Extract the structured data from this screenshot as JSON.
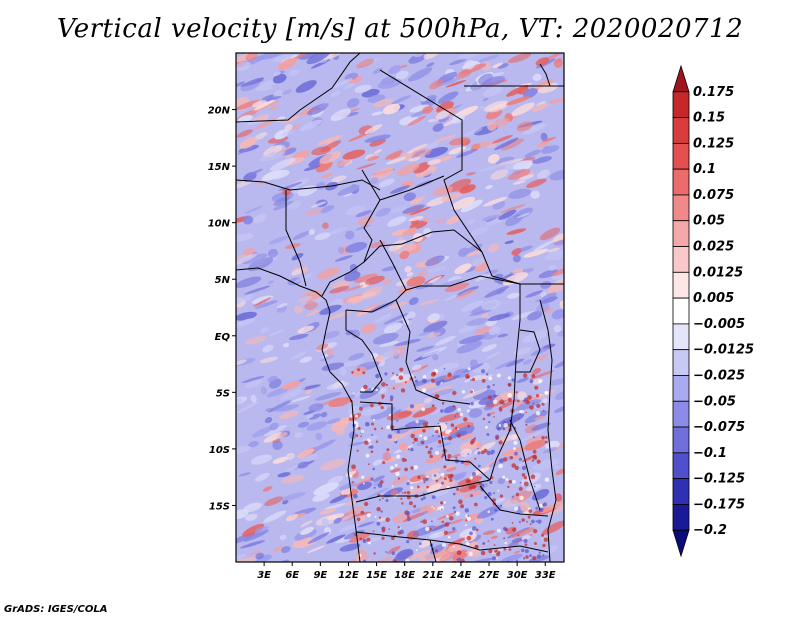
{
  "title": "Vertical velocity [m/s] at 500hPa, VT: 2020020712",
  "credit": "GrADS: IGES/COLA",
  "map": {
    "lat_range": [
      -20,
      25
    ],
    "lon_range": [
      0,
      35
    ],
    "lat_ticks": [
      {
        "value": 20,
        "label": "20N"
      },
      {
        "value": 15,
        "label": "15N"
      },
      {
        "value": 10,
        "label": "10N"
      },
      {
        "value": 5,
        "label": "5N"
      },
      {
        "value": 0,
        "label": "EQ"
      },
      {
        "value": -5,
        "label": "5S"
      },
      {
        "value": -10,
        "label": "10S"
      },
      {
        "value": -15,
        "label": "15S"
      }
    ],
    "lon_ticks": [
      {
        "value": 3,
        "label": "3E"
      },
      {
        "value": 6,
        "label": "6E"
      },
      {
        "value": 9,
        "label": "9E"
      },
      {
        "value": 12,
        "label": "12E"
      },
      {
        "value": 15,
        "label": "15E"
      },
      {
        "value": 18,
        "label": "18E"
      },
      {
        "value": 21,
        "label": "21E"
      },
      {
        "value": 24,
        "label": "24E"
      },
      {
        "value": 27,
        "label": "27E"
      },
      {
        "value": 30,
        "label": "30E"
      },
      {
        "value": 33,
        "label": "33E"
      }
    ]
  },
  "colorbar": {
    "levels": [
      "0.175",
      "0.15",
      "0.125",
      "0.1",
      "0.075",
      "0.05",
      "0.025",
      "0.0125",
      "0.005",
      "−0.005",
      "−0.0125",
      "−0.025",
      "−0.05",
      "−0.075",
      "−0.1",
      "−0.125",
      "−0.175",
      "−0.2"
    ],
    "colors": [
      "#a0141e",
      "#c42828",
      "#d83c3c",
      "#e45050",
      "#ec6c6c",
      "#f08a8a",
      "#f5a8a8",
      "#f9c8c8",
      "#fce6e6",
      "#ffffff",
      "#e4e4fa",
      "#c8c8f5",
      "#aaaaf0",
      "#8c8ce8",
      "#7070dc",
      "#5050cc",
      "#3030b4",
      "#1a1a96",
      "#0c0c78"
    ]
  },
  "colors": {
    "background_field": "#b3b3ef",
    "positive": "#ef7e7e",
    "negative": "#7d7de6",
    "border": "#000000"
  }
}
